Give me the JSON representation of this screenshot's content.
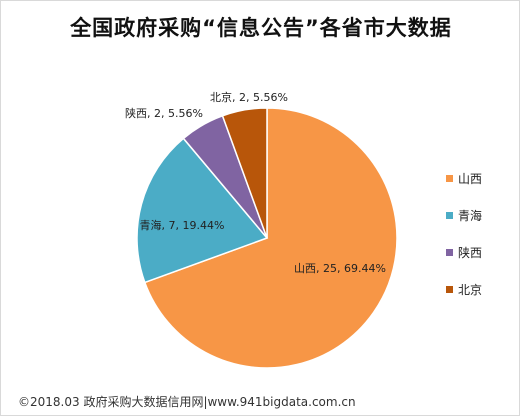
{
  "chart_data": {
    "type": "pie",
    "title": "全国政府采购“信息公告”各省市大数据",
    "slices": [
      {
        "name": "山西",
        "value": 25,
        "percent": "69.44%",
        "color": "#F79646"
      },
      {
        "name": "青海",
        "value": 7,
        "percent": "19.44%",
        "color": "#4BACC6"
      },
      {
        "name": "陕西",
        "value": 2,
        "percent": "5.56%",
        "color": "#8064A2"
      },
      {
        "name": "北京",
        "value": 2,
        "percent": "5.56%",
        "color": "#B8560A"
      }
    ],
    "data_labels": [
      "山西, 25, 69.44%",
      "青海, 7, 19.44%",
      "陕西, 2, 5.56%",
      "北京, 2, 5.56%"
    ],
    "legend": [
      "山西",
      "青海",
      "陕西",
      "北京"
    ],
    "legend_position": "right"
  },
  "footer": "©2018.03 政府采购大数据信用网|www.941bigdata.com.cn"
}
